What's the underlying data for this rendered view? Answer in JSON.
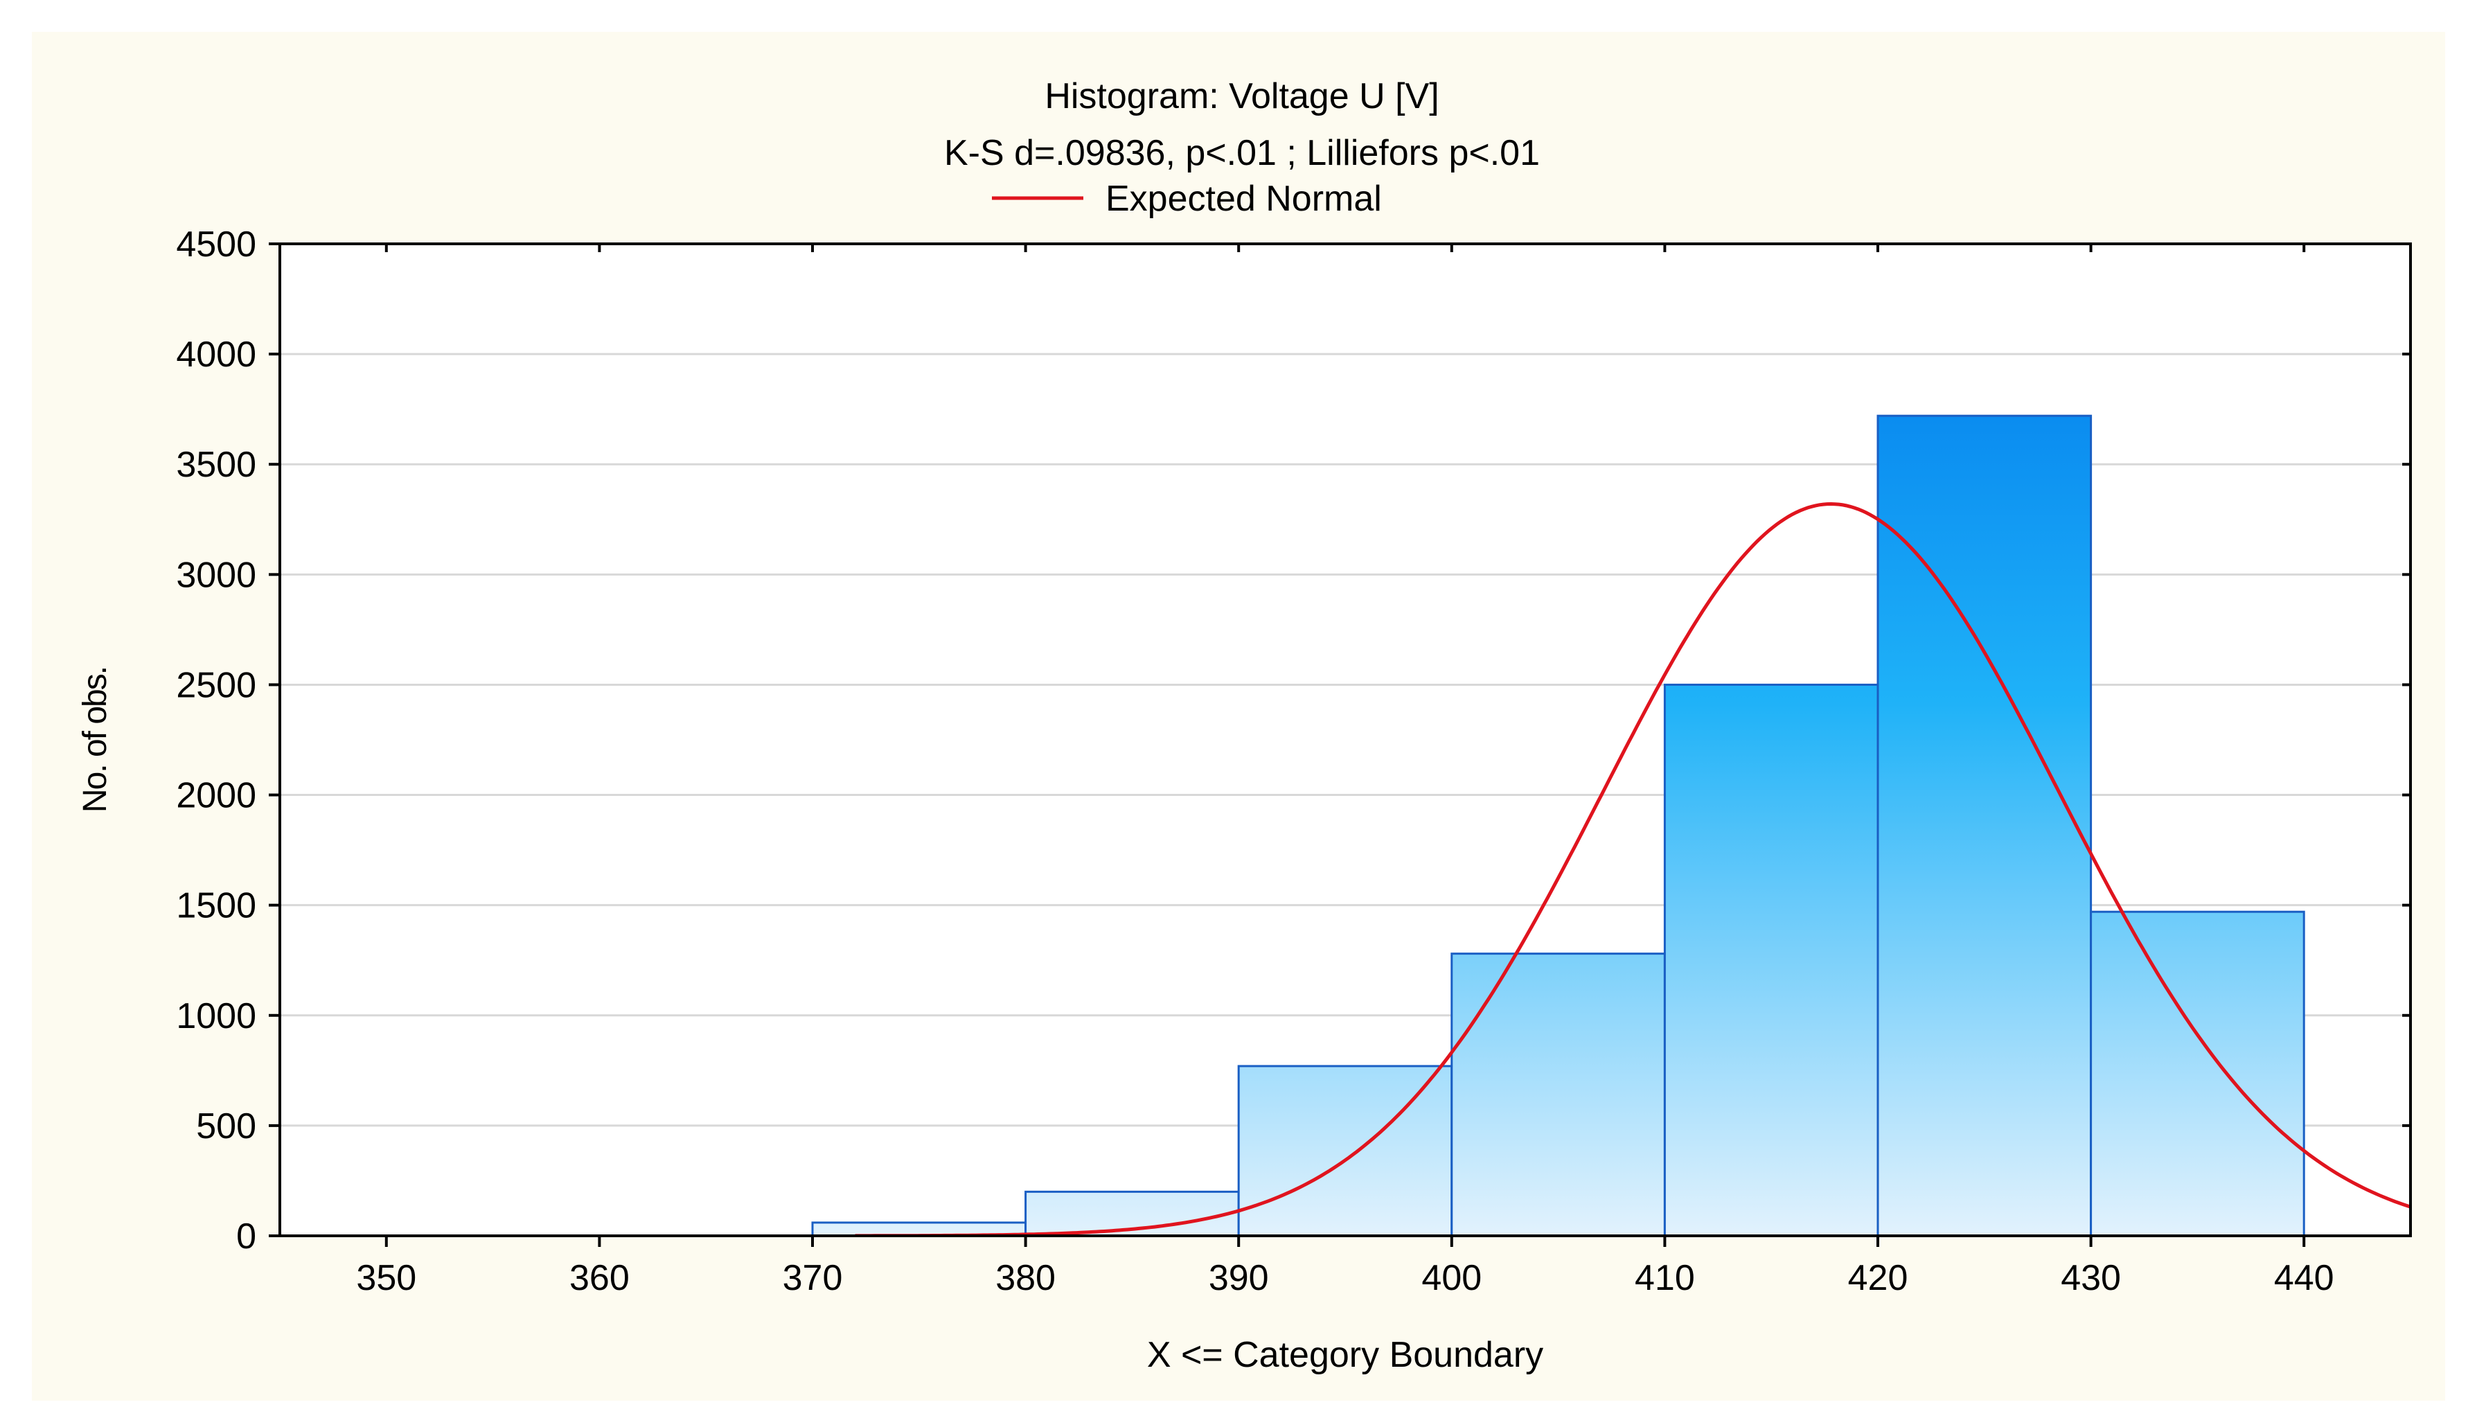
{
  "chart_data": {
    "type": "bar",
    "title": "Histogram: Voltage U [V]",
    "subtitle": "K-S d=.09836, p<.01 ; Lilliefors p<.01",
    "legend": {
      "label": "Expected Normal",
      "color": "#e0141e",
      "placement": "top"
    },
    "xlabel": "X <= Category Boundary",
    "ylabel": "No. of obs.",
    "xlim": [
      345,
      445
    ],
    "ylim": [
      0,
      4500
    ],
    "x_ticks": [
      350,
      360,
      370,
      380,
      390,
      400,
      410,
      420,
      430,
      440
    ],
    "y_ticks": [
      0,
      500,
      1000,
      1500,
      2000,
      2500,
      3000,
      3500,
      4000,
      4500
    ],
    "grid": "horizontal",
    "bins": [
      {
        "from": 370,
        "to": 380,
        "count": 60
      },
      {
        "from": 380,
        "to": 390,
        "count": 200
      },
      {
        "from": 390,
        "to": 400,
        "count": 770
      },
      {
        "from": 400,
        "to": 410,
        "count": 1280
      },
      {
        "from": 410,
        "to": 420,
        "count": 2500
      },
      {
        "from": 420,
        "to": 430,
        "count": 3720
      },
      {
        "from": 430,
        "to": 440,
        "count": 1470
      }
    ],
    "normal_curve": {
      "mean": 417.8,
      "sd": 10.7,
      "peak": 3320,
      "x_range": [
        372,
        445
      ]
    },
    "colors": {
      "bar_top": "#0a8cf0",
      "bar_bottom": "#e2f2fd",
      "bar_edge": "#1a5fc4",
      "grid": "#d8d8d8",
      "background": "#fdfbf0",
      "plot_bg": "#ffffff"
    }
  }
}
